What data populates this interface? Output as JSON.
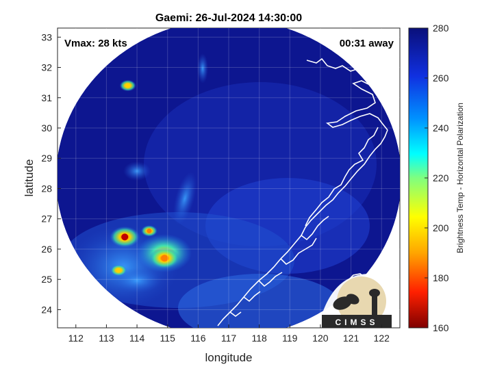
{
  "chart_data": {
    "type": "heatmap",
    "title": "Gaemi: 26-Jul-2024 14:30:00",
    "annotations": {
      "vmax": "Vmax: 28 kts",
      "time_offset": "00:31 away"
    },
    "xlabel": "longitude",
    "ylabel": "latitude",
    "xlim": [
      111.4,
      122.6
    ],
    "ylim": [
      23.4,
      33.3
    ],
    "x_ticks": [
      "112",
      "113",
      "114",
      "115",
      "116",
      "117",
      "118",
      "119",
      "120",
      "121",
      "122"
    ],
    "y_ticks": [
      "24",
      "25",
      "26",
      "27",
      "28",
      "29",
      "30",
      "31",
      "32",
      "33"
    ],
    "grid": true,
    "colorbar": {
      "label": "Brightness Temp - Horizontal Polarization",
      "range": [
        160,
        280
      ],
      "ticks": [
        "160",
        "180",
        "200",
        "220",
        "240",
        "260",
        "280"
      ]
    },
    "colors": {
      "background_field": "#1a2aa8",
      "deep_cold": "#8b0000",
      "warm": "#0a0f8c"
    },
    "features": [
      {
        "name": "warm convective cluster",
        "lon": 114.9,
        "lat": 25.7,
        "bt": 190
      },
      {
        "name": "cell",
        "lon": 113.6,
        "lat": 26.4,
        "bt": 185
      },
      {
        "name": "cell",
        "lon": 114.4,
        "lat": 26.6,
        "bt": 205
      },
      {
        "name": "cell",
        "lon": 113.7,
        "lat": 31.4,
        "bt": 215
      },
      {
        "name": "cell",
        "lon": 113.4,
        "lat": 25.3,
        "bt": 215
      }
    ],
    "logo_text": "CIMSS"
  }
}
